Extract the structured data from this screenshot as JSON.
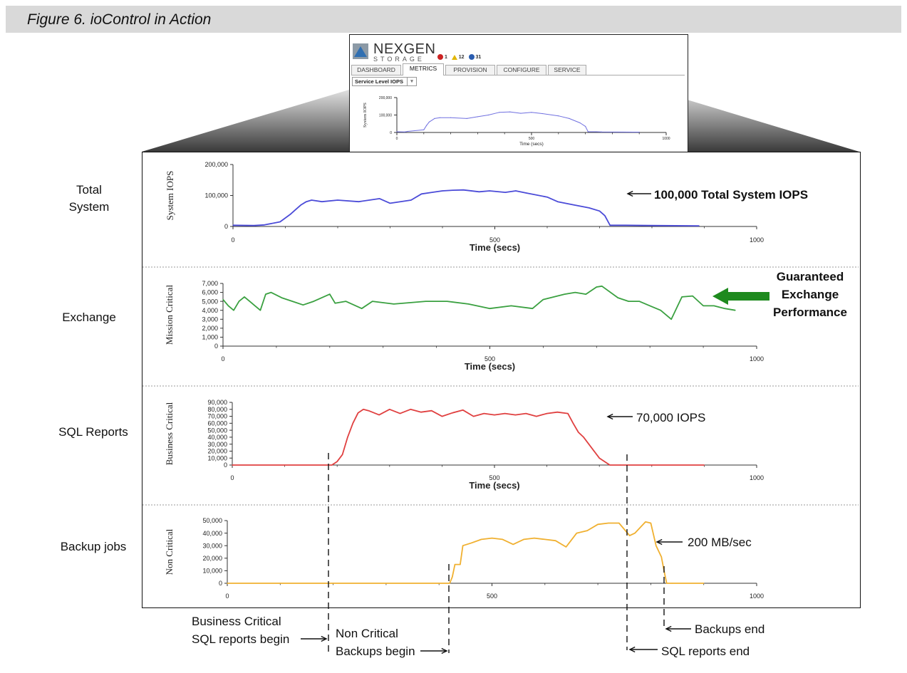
{
  "caption": "Figure 6. ioControl in Action",
  "nexgen": {
    "brand": "NEXGEN",
    "sub": "STORAGE",
    "alerts": [
      "1",
      "12",
      "31"
    ],
    "tabs": [
      "DASHBOARD",
      "METRICS",
      "PROVISION",
      "CONFIGURE",
      "SERVICE"
    ],
    "active_tab": "METRICS",
    "select_value": "Service Level IOPS"
  },
  "row_labels": [
    "Total System",
    "Exchange",
    "SQL Reports",
    "Backup jobs"
  ],
  "annotations": {
    "total": "100,000 Total System IOPS",
    "exchange": [
      "Guaranteed",
      "Exchange",
      "Performance"
    ],
    "sql": "70,000 IOPS",
    "backup": "200 MB/sec"
  },
  "bottom_labels": {
    "sql_begin": [
      "Business Critical",
      "SQL reports begin"
    ],
    "backup_begin": [
      "Non Critical",
      "Backups begin"
    ],
    "backups_end": "Backups end",
    "sql_end": "SQL reports end"
  },
  "colors": {
    "total": "#4b4bd8",
    "exchange": "#3aa040",
    "sql": "#e04040",
    "backup": "#f0b030",
    "arrow_green": "#1e8a1e"
  },
  "chart_data": [
    {
      "type": "line",
      "panel": "thumbnail",
      "ylabel": "System IOPS",
      "xlabel": "Time (secs)",
      "xlim": [
        0,
        1000
      ],
      "ylim": [
        0,
        200000
      ],
      "xticks": [
        "0",
        "500",
        "1000"
      ],
      "yticks": [
        "0",
        "100,000",
        "200,000"
      ],
      "x": [
        0,
        30,
        40,
        100,
        110,
        120,
        140,
        160,
        200,
        260,
        300,
        340,
        380,
        420,
        460,
        500,
        540,
        600,
        640,
        680,
        700,
        710,
        740,
        760,
        900
      ],
      "values": [
        4000,
        3000,
        6000,
        15000,
        40000,
        60000,
        80000,
        85000,
        85000,
        80000,
        90000,
        100000,
        115000,
        118000,
        110000,
        115000,
        108000,
        95000,
        80000,
        55000,
        35000,
        4000,
        4000,
        3000,
        2000
      ]
    },
    {
      "type": "line",
      "panel": "Total System",
      "ylabel": "System IOPS",
      "xlabel": "Time (secs)",
      "xlim": [
        0,
        1000
      ],
      "ylim": [
        0,
        200000
      ],
      "xticks": [
        "0",
        "500",
        "1000"
      ],
      "yticks": [
        "0",
        "100,000",
        "200,000"
      ],
      "x": [
        0,
        40,
        60,
        90,
        110,
        120,
        130,
        140,
        150,
        170,
        200,
        240,
        280,
        300,
        340,
        360,
        380,
        400,
        420,
        440,
        470,
        490,
        520,
        540,
        560,
        600,
        620,
        650,
        680,
        700,
        710,
        720,
        750,
        800,
        890
      ],
      "values": [
        4000,
        3000,
        5000,
        15000,
        40000,
        55000,
        70000,
        80000,
        85000,
        80000,
        85000,
        80000,
        90000,
        75000,
        85000,
        105000,
        110000,
        115000,
        117000,
        118000,
        112000,
        115000,
        110000,
        115000,
        108000,
        95000,
        80000,
        70000,
        60000,
        50000,
        35000,
        4000,
        4000,
        3000,
        2000
      ]
    },
    {
      "type": "line",
      "panel": "Exchange",
      "ylabel": "Mission Critical",
      "xlabel": "Time (secs)",
      "xlim": [
        0,
        1000
      ],
      "ylim": [
        0,
        7000
      ],
      "xticks": [
        "0",
        "500",
        "1000"
      ],
      "yticks": [
        "0",
        "1,000",
        "2,000",
        "3,000",
        "4,000",
        "5,000",
        "6,000",
        "7,000"
      ],
      "x": [
        0,
        10,
        20,
        30,
        40,
        50,
        60,
        70,
        80,
        90,
        110,
        130,
        150,
        170,
        200,
        210,
        230,
        260,
        280,
        320,
        380,
        420,
        460,
        500,
        540,
        580,
        600,
        640,
        660,
        680,
        700,
        710,
        740,
        760,
        780,
        800,
        820,
        840,
        860,
        880,
        900,
        920,
        940,
        960
      ],
      "values": [
        5200,
        4500,
        4000,
        5000,
        5500,
        5000,
        4500,
        4000,
        5800,
        6000,
        5400,
        5000,
        4600,
        5000,
        5800,
        4800,
        5000,
        4200,
        5000,
        4700,
        5000,
        5000,
        4700,
        4200,
        4500,
        4200,
        5200,
        5800,
        6000,
        5800,
        6600,
        6700,
        5400,
        5000,
        5000,
        4500,
        4000,
        3000,
        5500,
        5600,
        4500,
        4500,
        4200,
        4000
      ]
    },
    {
      "type": "line",
      "panel": "SQL Reports",
      "ylabel": "Business Critical",
      "xlabel": "Time (secs)",
      "xlim": [
        0,
        1000
      ],
      "ylim": [
        0,
        90000
      ],
      "xticks": [
        "0",
        "500",
        "1000"
      ],
      "yticks": [
        "0",
        "10,000",
        "20,000",
        "30,000",
        "40,000",
        "50,000",
        "60,000",
        "70,000",
        "80,000",
        "90,000"
      ],
      "x": [
        0,
        100,
        190,
        200,
        210,
        220,
        230,
        240,
        250,
        260,
        280,
        300,
        320,
        340,
        360,
        380,
        400,
        420,
        440,
        460,
        480,
        500,
        520,
        540,
        560,
        580,
        600,
        620,
        640,
        650,
        660,
        670,
        690,
        700,
        720,
        740,
        800,
        900
      ],
      "values": [
        0,
        0,
        0,
        5000,
        15000,
        40000,
        60000,
        75000,
        80000,
        78000,
        72000,
        80000,
        74000,
        80000,
        76000,
        78000,
        70000,
        75000,
        79000,
        70000,
        74000,
        72000,
        74000,
        72000,
        74000,
        70000,
        74000,
        76000,
        74000,
        60000,
        47000,
        40000,
        20000,
        10000,
        0,
        0,
        0,
        0
      ]
    },
    {
      "type": "line",
      "panel": "Backup jobs",
      "ylabel": "Non Critical",
      "xlabel": "",
      "xlim": [
        0,
        1000
      ],
      "ylim": [
        0,
        50000
      ],
      "xticks": [
        "0",
        "500",
        "1000"
      ],
      "yticks": [
        "0",
        "10,000",
        "20,000",
        "30,000",
        "40,000",
        "50,000"
      ],
      "x": [
        0,
        420,
        425,
        430,
        440,
        445,
        460,
        480,
        500,
        520,
        540,
        560,
        580,
        600,
        620,
        640,
        660,
        680,
        700,
        720,
        740,
        760,
        770,
        790,
        800,
        810,
        820,
        825,
        830,
        840,
        900
      ],
      "values": [
        0,
        0,
        5000,
        15000,
        15000,
        30000,
        32000,
        35000,
        36000,
        35000,
        31000,
        35000,
        36000,
        35000,
        34000,
        29000,
        40000,
        42000,
        47000,
        48000,
        48000,
        38000,
        40000,
        49000,
        48000,
        30000,
        21000,
        10000,
        0,
        0,
        0
      ]
    }
  ]
}
